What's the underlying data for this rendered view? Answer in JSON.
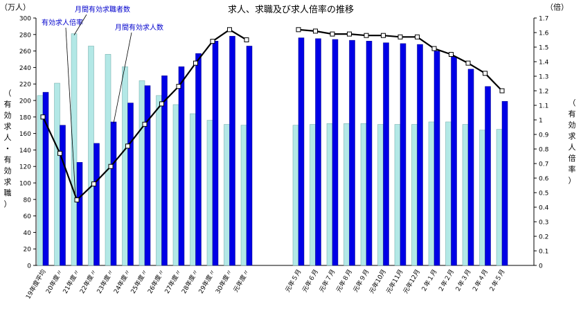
{
  "chart_data": {
    "type": "bar",
    "title": "求人、求職及び求人倍率の推移",
    "left_unit": "（万人）",
    "right_unit": "（倍）",
    "ylabel_left": "（有効求人・有効求職）",
    "ylabel_right": "（有効求人倍率）",
    "ylim_left": [
      0,
      300
    ],
    "ylim_right": [
      0,
      1.7
    ],
    "yticks_left": [
      "0",
      "20",
      "40",
      "60",
      "80",
      "100",
      "120",
      "140",
      "160",
      "180",
      "200",
      "220",
      "240",
      "260",
      "280",
      "300"
    ],
    "yticks_right": [
      "0",
      "0.1",
      "0.2",
      "0.3",
      "0.4",
      "0.5",
      "0.6",
      "0.7",
      "0.8",
      "0.9",
      "1",
      "1.1",
      "1.2",
      "1.3",
      "1.4",
      "1.5",
      "1.6",
      "1.7"
    ],
    "grid": false,
    "categories": [
      "19年度平均",
      "20年度〃",
      "21年度〃",
      "22年度〃",
      "23年度〃",
      "24年度〃",
      "25年度〃",
      "26年度〃",
      "27年度〃",
      "28年度〃",
      "29年度〃",
      "30年度〃",
      "元年度〃",
      "元年５月",
      "元年６月",
      "元年７月",
      "元年８月",
      "元年９月",
      "元年10月",
      "元年11月",
      "元年12月",
      "２年１月",
      "２年２月",
      "２年３月",
      "２年４月",
      "２年５月"
    ],
    "gap_after_index": 12,
    "series": [
      {
        "name": "月間有効求職者数",
        "kind": "bar",
        "color": "#b3e8e6",
        "values": [
          206,
          221,
          281,
          266,
          256,
          241,
          224,
          206,
          195,
          184,
          176,
          171,
          170,
          170,
          171,
          172,
          172,
          172,
          171,
          171,
          171,
          174,
          174,
          171,
          164,
          165
        ]
      },
      {
        "name": "月間有効求人数",
        "kind": "bar",
        "color": "#0000e6",
        "values": [
          210,
          170,
          125,
          148,
          174,
          197,
          218,
          230,
          241,
          257,
          272,
          278,
          266,
          276,
          275,
          274,
          273,
          272,
          270,
          269,
          268,
          260,
          253,
          238,
          217,
          199
        ]
      },
      {
        "name": "有効求人倍率",
        "kind": "line",
        "color": "#000000",
        "values": [
          1.02,
          0.77,
          0.45,
          0.56,
          0.68,
          0.82,
          0.97,
          1.11,
          1.23,
          1.39,
          1.54,
          1.62,
          1.55,
          1.62,
          1.61,
          1.59,
          1.59,
          1.58,
          1.58,
          1.57,
          1.57,
          1.49,
          1.45,
          1.39,
          1.32,
          1.2
        ]
      }
    ],
    "annotations": [
      {
        "text": "有効求人倍率",
        "series": 2
      },
      {
        "text": "月間有効求職者数",
        "series": 0
      },
      {
        "text": "月間有効求人数",
        "series": 1
      }
    ]
  }
}
